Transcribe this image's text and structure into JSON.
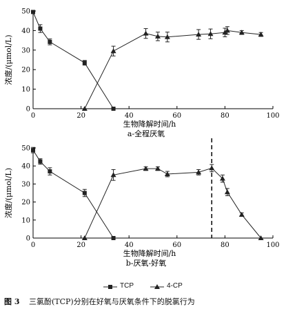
{
  "chart_data": [
    {
      "type": "line",
      "panel_label": "a-全程厌氧",
      "xlabel": "生物降解时间/h",
      "ylabel": "浓度/(μmol/L)",
      "xlim": [
        0,
        100
      ],
      "ylim": [
        0,
        50
      ],
      "xticks": [
        "0",
        "20",
        "40",
        "60",
        "80",
        "100"
      ],
      "yticks": [
        "0",
        "10",
        "20",
        "30",
        "40",
        "50"
      ],
      "series": [
        {
          "name": "TCP",
          "marker": "square",
          "x": [
            0,
            3,
            7,
            21.5,
            33.5
          ],
          "y": [
            49.5,
            41,
            34.2,
            23.5,
            0
          ],
          "err": [
            0.5,
            2,
            1.5,
            1.2,
            0
          ]
        },
        {
          "name": "4-CP",
          "marker": "triangle",
          "x": [
            21.5,
            33.5,
            47,
            52,
            56,
            69,
            74,
            80,
            81,
            87,
            95
          ],
          "y": [
            0,
            29.5,
            38.5,
            37,
            36.7,
            38,
            38.3,
            39,
            40,
            39,
            38
          ],
          "err": [
            0,
            2.5,
            2.5,
            2.2,
            2.5,
            2.5,
            2.5,
            2.2,
            2,
            1,
            1
          ]
        }
      ]
    },
    {
      "type": "line",
      "panel_label": "b-厌氧-好氧",
      "xlabel": "生物降解时间/h",
      "ylabel": "浓度/(μmol/L)",
      "xlim": [
        0,
        100
      ],
      "ylim": [
        0,
        50
      ],
      "xticks": [
        "0",
        "20",
        "40",
        "60",
        "80",
        "100"
      ],
      "yticks": [
        "0",
        "10",
        "20",
        "30",
        "40",
        "50"
      ],
      "vline_x": 74.5,
      "series": [
        {
          "name": "TCP",
          "marker": "square",
          "x": [
            0,
            3,
            7,
            21.5,
            33.5
          ],
          "y": [
            48.8,
            42.5,
            37,
            25,
            0
          ],
          "err": [
            1.5,
            1.5,
            2,
            2,
            0
          ]
        },
        {
          "name": "4-CP",
          "marker": "triangle",
          "x": [
            21.5,
            33.5,
            47,
            52,
            56,
            69,
            74.5,
            79,
            81,
            87,
            95
          ],
          "y": [
            0,
            35,
            38.5,
            38.5,
            35.5,
            36.5,
            38.8,
            33,
            25.5,
            13,
            0
          ],
          "err": [
            0,
            3,
            1,
            1,
            1.5,
            1.5,
            2,
            2,
            2,
            1,
            0
          ]
        }
      ]
    }
  ],
  "legend": {
    "tcp": "TCP",
    "cp4": "4-CP"
  },
  "caption": {
    "number": "图 3",
    "text": "三氯酚(TCP)分别在好氧与厌氧条件下的脱氯行为"
  }
}
